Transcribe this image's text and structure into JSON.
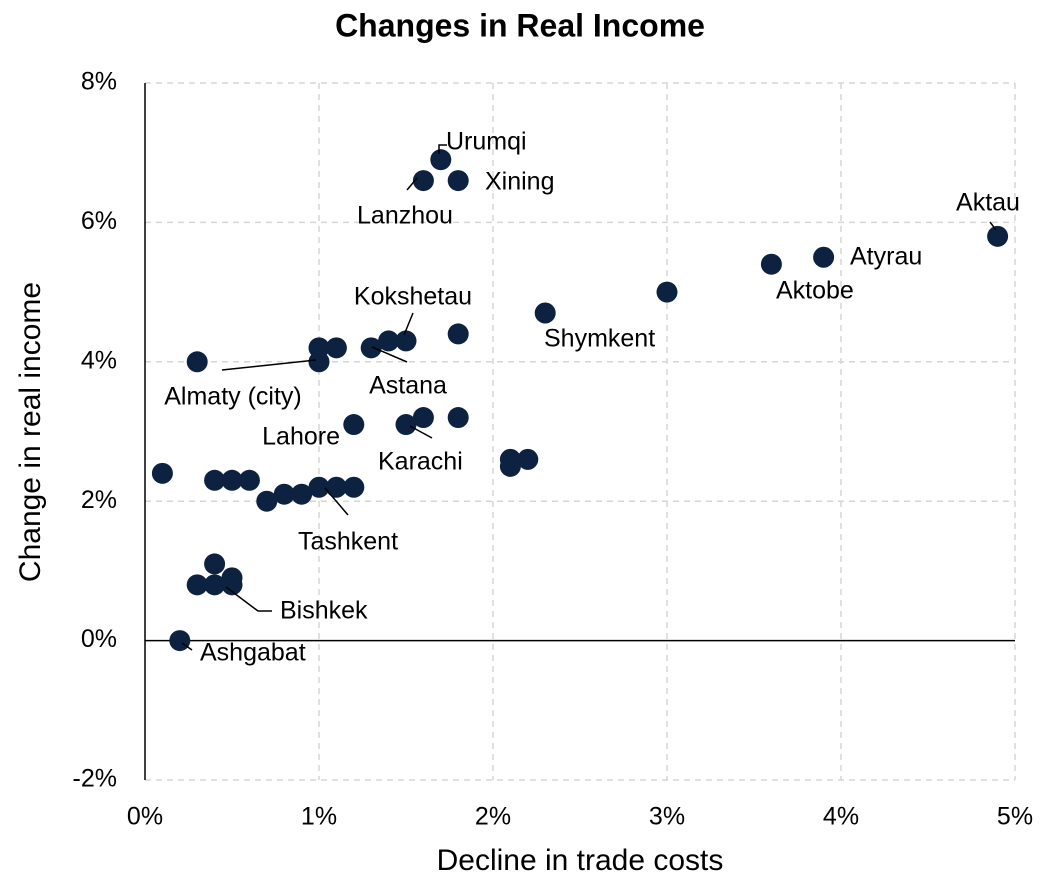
{
  "chart_data": {
    "type": "scatter",
    "title": "Changes in Real Income",
    "xlabel": "Decline in trade costs",
    "ylabel": "Change in real income",
    "xlim": [
      0,
      5
    ],
    "ylim": [
      -2,
      8
    ],
    "xticks": [
      {
        "value": 0,
        "label": "0%"
      },
      {
        "value": 1,
        "label": "1%"
      },
      {
        "value": 2,
        "label": "2%"
      },
      {
        "value": 3,
        "label": "3%"
      },
      {
        "value": 4,
        "label": "4%"
      },
      {
        "value": 5,
        "label": "5%"
      }
    ],
    "yticks": [
      {
        "value": -2,
        "label": "-2%"
      },
      {
        "value": 0,
        "label": "0%"
      },
      {
        "value": 2,
        "label": "2%"
      },
      {
        "value": 4,
        "label": "4%"
      },
      {
        "value": 6,
        "label": "6%"
      },
      {
        "value": 8,
        "label": "8%"
      }
    ],
    "grid": true,
    "color": "#0d2240",
    "x": [
      1.7,
      1.6,
      1.8,
      4.9,
      3.9,
      3.6,
      3.0,
      2.3,
      1.8,
      1.5,
      1.4,
      1.3,
      1.1,
      1.0,
      1.0,
      0.3,
      1.2,
      1.6,
      1.8,
      1.5,
      2.1,
      2.2,
      2.1,
      0.1,
      0.4,
      0.5,
      0.6,
      0.7,
      0.8,
      0.9,
      1.0,
      1.1,
      1.2,
      0.4,
      0.3,
      0.4,
      0.5,
      0.5,
      0.2
    ],
    "y": [
      6.9,
      6.6,
      6.6,
      5.8,
      5.5,
      5.4,
      5.0,
      4.7,
      4.4,
      4.3,
      4.3,
      4.2,
      4.2,
      4.2,
      4.0,
      4.0,
      3.1,
      3.2,
      3.2,
      3.1,
      2.6,
      2.6,
      2.5,
      2.4,
      2.3,
      2.3,
      2.3,
      2.0,
      2.1,
      2.1,
      2.2,
      2.2,
      2.2,
      1.1,
      0.8,
      0.8,
      0.9,
      0.8,
      0.0
    ],
    "labels": [
      "Urumqi",
      "Lanzhou",
      "Xining",
      "Aktau",
      "Atyrau",
      "Aktobe",
      null,
      "Shymkent",
      null,
      "Kokshetau",
      null,
      "Astana",
      null,
      null,
      "Almaty (city)",
      null,
      "Lahore",
      null,
      null,
      "Karachi",
      null,
      null,
      null,
      null,
      null,
      null,
      null,
      null,
      null,
      null,
      "Tashkent",
      null,
      null,
      null,
      null,
      null,
      null,
      "Bishkek",
      "Ashgabat"
    ]
  }
}
